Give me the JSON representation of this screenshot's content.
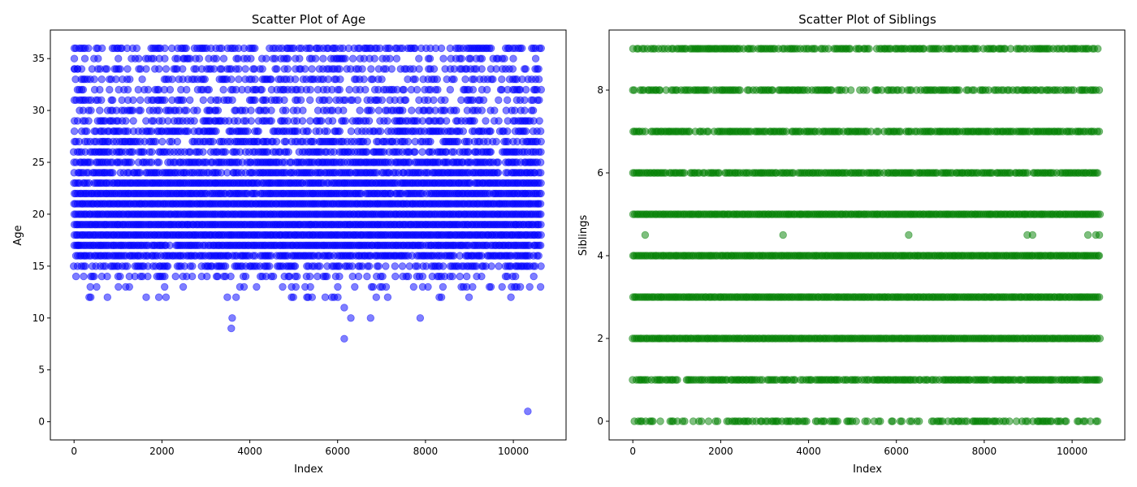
{
  "chart_data": [
    {
      "type": "scatter",
      "title": "Scatter Plot of Age",
      "xlabel": "Index",
      "ylabel": "Age",
      "xlim": [
        -540,
        11200
      ],
      "ylim": [
        -1.75,
        37.75
      ],
      "xticks": [
        0,
        2000,
        4000,
        6000,
        8000,
        10000
      ],
      "yticks": [
        0,
        5,
        10,
        15,
        20,
        25,
        30,
        35
      ],
      "color": "#0000ff",
      "alpha": 0.5,
      "grid": false,
      "n_points": 10660,
      "x_range": [
        0,
        10660
      ],
      "bands": [
        {
          "y": 14,
          "density": 0.35
        },
        {
          "y": 15,
          "density": 0.55
        },
        {
          "y": 16,
          "density": 0.85
        },
        {
          "y": 17,
          "density": 0.95
        },
        {
          "y": 18,
          "density": 1.0
        },
        {
          "y": 19,
          "density": 1.0
        },
        {
          "y": 20,
          "density": 1.0
        },
        {
          "y": 21,
          "density": 1.0
        },
        {
          "y": 22,
          "density": 0.95
        },
        {
          "y": 23,
          "density": 0.95
        },
        {
          "y": 24,
          "density": 0.85
        },
        {
          "y": 25,
          "density": 0.75
        },
        {
          "y": 26,
          "density": 0.7
        },
        {
          "y": 27,
          "density": 0.6
        },
        {
          "y": 28,
          "density": 0.55
        },
        {
          "y": 29,
          "density": 0.45
        },
        {
          "y": 30,
          "density": 0.45
        },
        {
          "y": 31,
          "density": 0.4
        },
        {
          "y": 32,
          "density": 0.4
        },
        {
          "y": 33,
          "density": 0.35
        },
        {
          "y": 34,
          "density": 0.4
        },
        {
          "y": 35,
          "density": 0.35
        },
        {
          "y": 36,
          "density": 0.55
        },
        {
          "y": 13,
          "density": 0.15
        },
        {
          "y": 12,
          "density": 0.08
        }
      ],
      "points": [
        {
          "x": 10,
          "y": 34
        },
        {
          "x": 80,
          "y": 34
        },
        {
          "x": 10,
          "y": 29
        },
        {
          "x": 80,
          "y": 26
        },
        {
          "x": 100,
          "y": 17
        },
        {
          "x": 3600,
          "y": 10
        },
        {
          "x": 3580,
          "y": 9
        },
        {
          "x": 6150,
          "y": 11
        },
        {
          "x": 6150,
          "y": 8
        },
        {
          "x": 6300,
          "y": 10
        },
        {
          "x": 6750,
          "y": 10
        },
        {
          "x": 7880,
          "y": 10
        },
        {
          "x": 10330,
          "y": 1
        }
      ]
    },
    {
      "type": "scatter",
      "title": "Scatter Plot of Siblings",
      "xlabel": "Index",
      "ylabel": "Siblings",
      "xlim": [
        -540,
        11200
      ],
      "ylim": [
        -0.45,
        9.45
      ],
      "xticks": [
        0,
        2000,
        4000,
        6000,
        8000,
        10000
      ],
      "yticks": [
        0,
        2,
        4,
        6,
        8
      ],
      "color": "#008000",
      "alpha": 0.5,
      "grid": false,
      "n_points": 10660,
      "x_range": [
        0,
        10660
      ],
      "bands": [
        {
          "y": 0,
          "density": 0.55
        },
        {
          "y": 1,
          "density": 0.85
        },
        {
          "y": 2,
          "density": 1.0
        },
        {
          "y": 3,
          "density": 1.0
        },
        {
          "y": 4,
          "density": 1.0
        },
        {
          "y": 5,
          "density": 1.0
        },
        {
          "y": 6,
          "density": 0.9
        },
        {
          "y": 7,
          "density": 0.85
        },
        {
          "y": 8,
          "density": 0.65
        },
        {
          "y": 9,
          "density": 0.75
        }
      ],
      "points": [
        {
          "x": 280,
          "y": 4.5
        },
        {
          "x": 3420,
          "y": 4.5
        },
        {
          "x": 6280,
          "y": 4.5
        },
        {
          "x": 8980,
          "y": 4.5
        },
        {
          "x": 9100,
          "y": 4.5
        },
        {
          "x": 10360,
          "y": 4.5
        },
        {
          "x": 10540,
          "y": 4.5
        },
        {
          "x": 10620,
          "y": 4.5
        }
      ]
    }
  ]
}
